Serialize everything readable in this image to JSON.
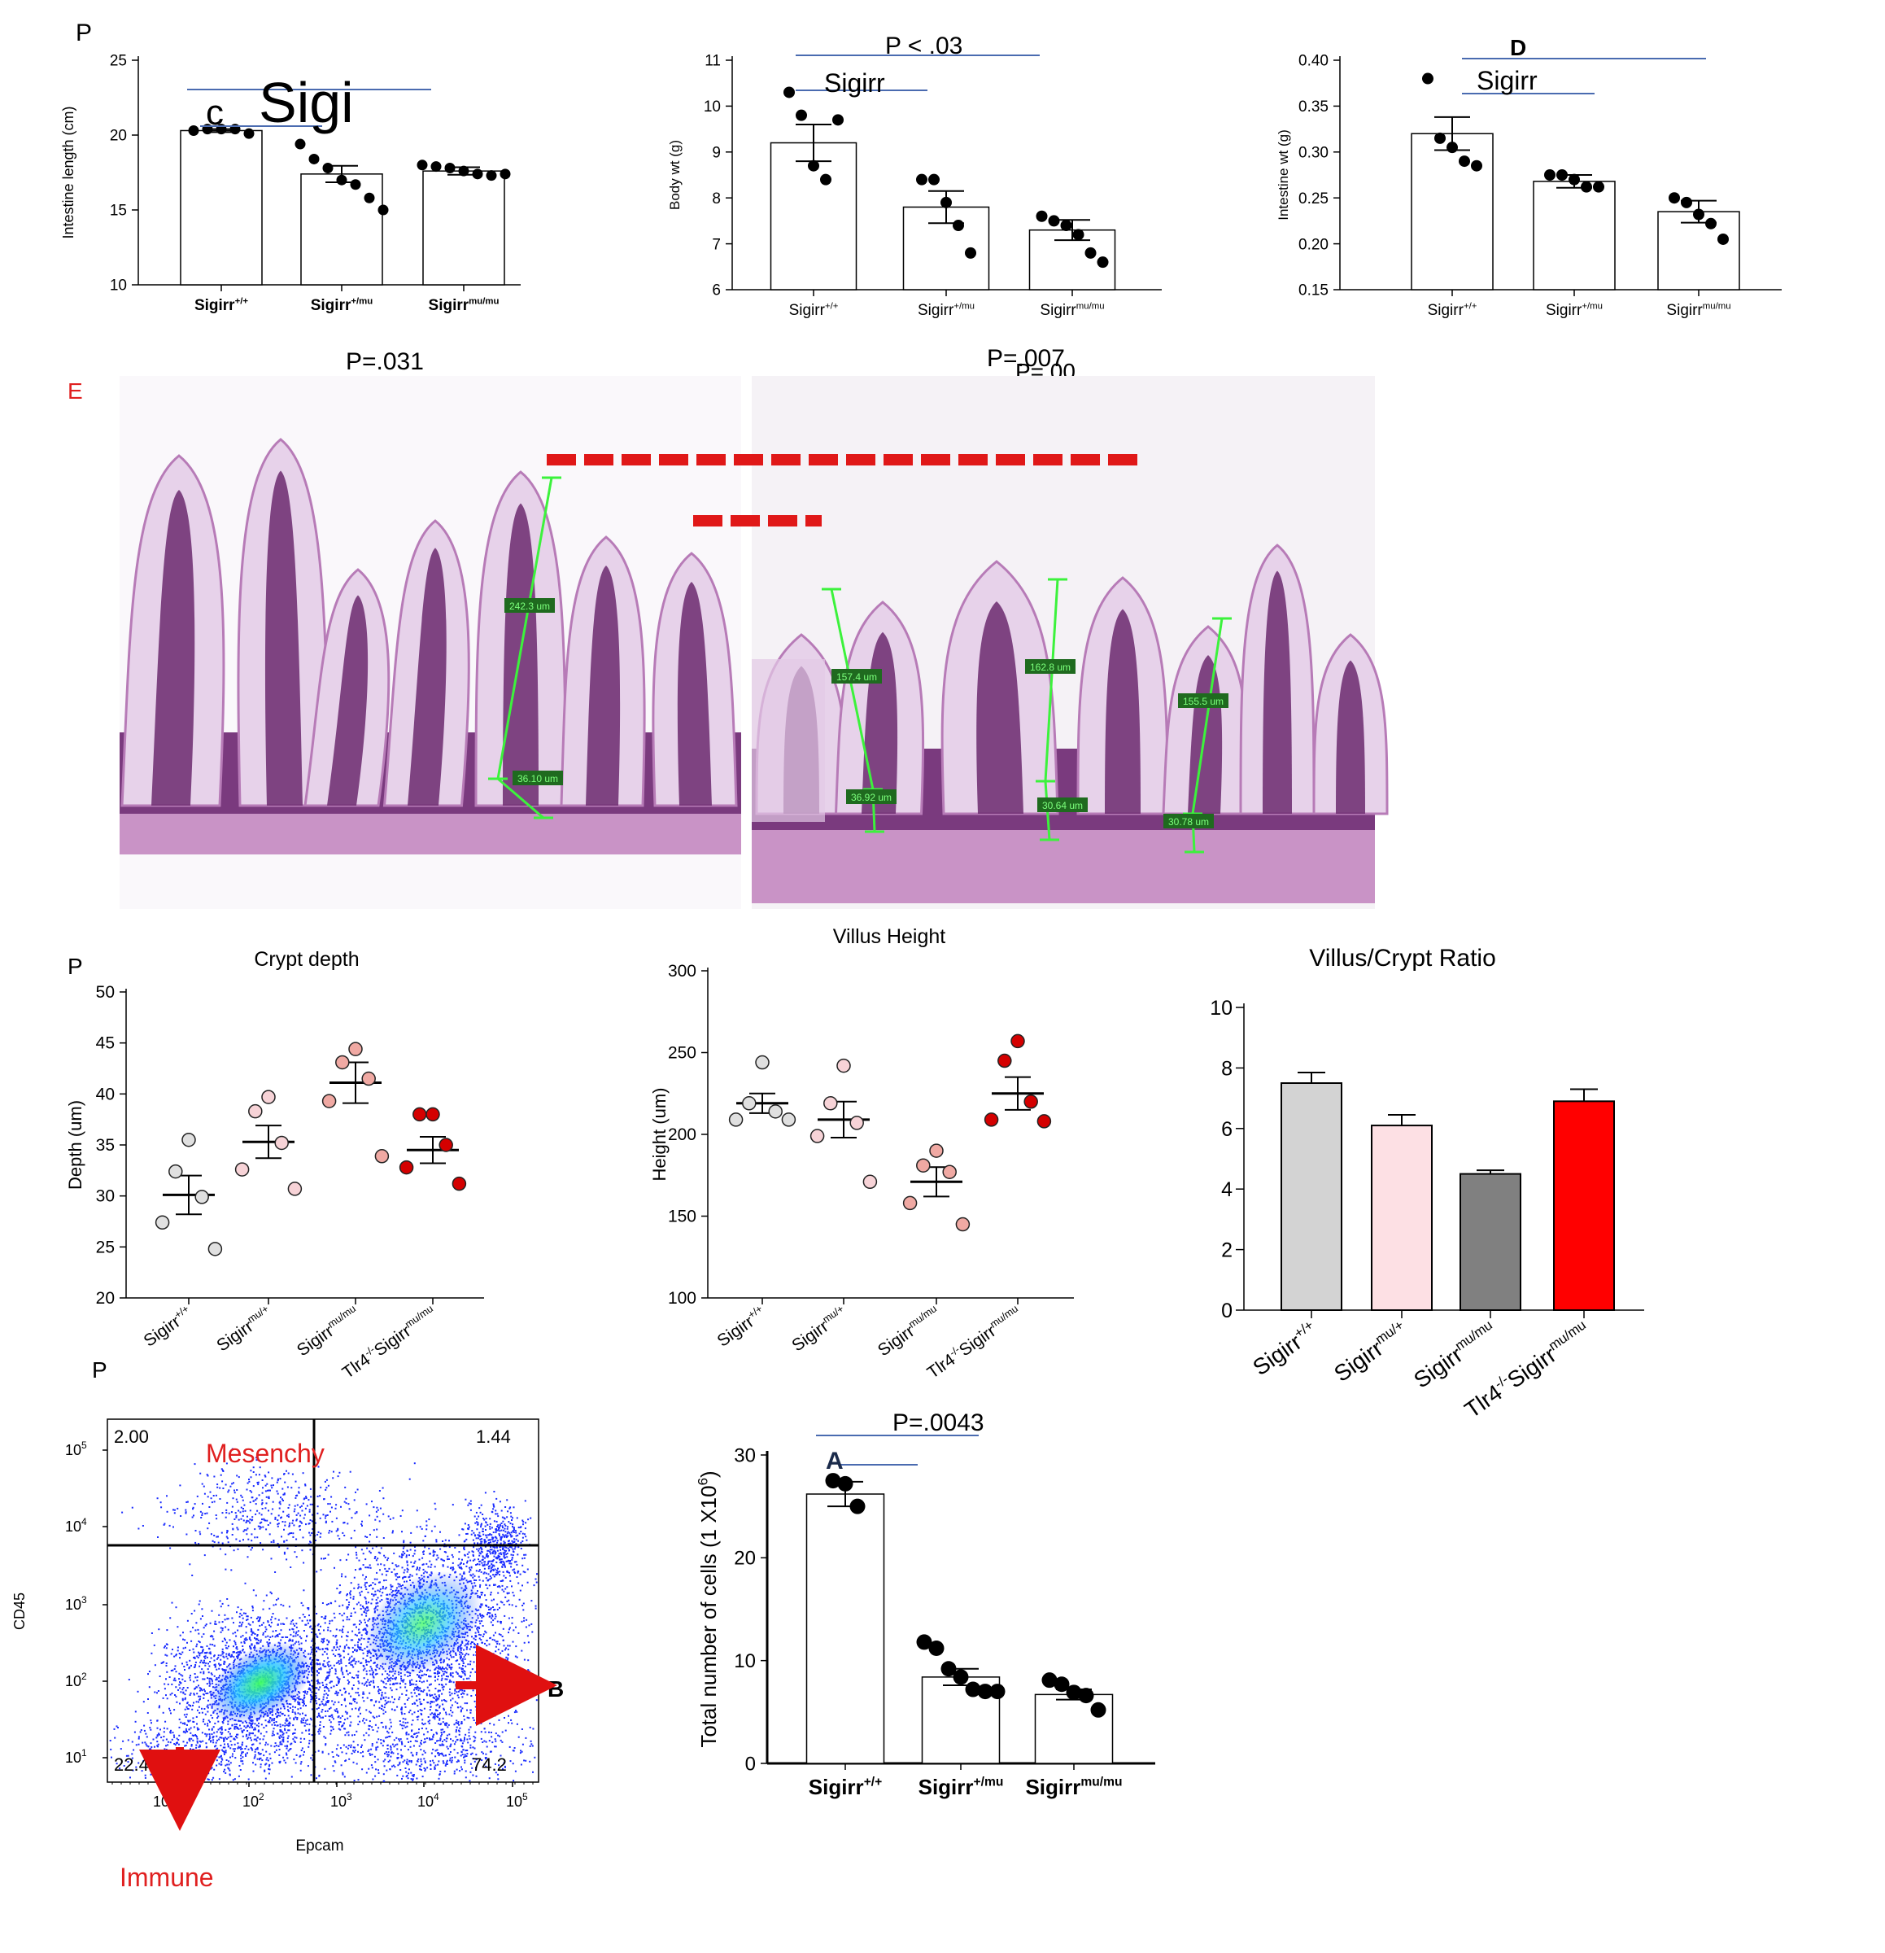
{
  "panels": {
    "a_label": "P",
    "e_label": "E",
    "f_label": "P",
    "g_label": "P",
    "d_label": "D"
  },
  "annotations": {
    "intestine_length_overlay_c": "c",
    "intestine_length_overlay_sigi": "Sigi",
    "body_wt_p": "P < .03",
    "body_wt_sigirr": "Sigirr",
    "intestine_wt_sigirr": "Sigirr",
    "histology_p_left": "P=.031",
    "histology_p_right": "P=.007",
    "histology_p_right_ghost": "P=.00",
    "total_cells_p": "P=.0043",
    "total_cells_a": "A",
    "flow_mesenchy": "Mesenchy",
    "flow_immune": "Immune",
    "flow_b": "B"
  },
  "histology_measurements": [
    "242.3 um",
    "36.10 um",
    "157.4 um",
    "36.92 um",
    "162.8 um",
    "30.64 um",
    "155.5 um",
    "30.78 um"
  ],
  "chart_data": [
    {
      "id": "intestine_length",
      "type": "bar",
      "ylabel": "Intestine length (cm)",
      "ylim": [
        10,
        25
      ],
      "yticks": [
        10,
        15,
        20,
        25
      ],
      "categories": [
        {
          "base": "Sigirr",
          "sup": "+/+"
        },
        {
          "base": "Sigirr",
          "sup": "+/mu"
        },
        {
          "base": "Sigirr",
          "sup": "mu/mu"
        }
      ],
      "values": [
        20.3,
        17.4,
        17.6
      ],
      "sem": [
        0.1,
        0.55,
        0.25
      ],
      "points": [
        [
          20.3,
          20.4,
          20.4,
          20.4,
          20.1
        ],
        [
          19.4,
          18.4,
          17.8,
          17.0,
          16.7,
          15.8,
          15.0
        ],
        [
          18.0,
          17.9,
          17.8,
          17.6,
          17.4,
          17.3,
          17.4
        ]
      ]
    },
    {
      "id": "body_wt",
      "type": "bar",
      "ylabel": "Body wt (g)",
      "ylim": [
        6,
        11
      ],
      "yticks": [
        6,
        7,
        8,
        9,
        10,
        11
      ],
      "categories": [
        {
          "base": "Sigirr",
          "sup": "+/+"
        },
        {
          "base": "Sigirr",
          "sup": "+/mu"
        },
        {
          "base": "Sigirr",
          "sup": "mu/mu"
        }
      ],
      "values": [
        9.2,
        7.8,
        7.3
      ],
      "sem": [
        0.4,
        0.35,
        0.22
      ],
      "points": [
        [
          10.3,
          9.8,
          8.7,
          8.4,
          9.7
        ],
        [
          8.4,
          8.4,
          7.9,
          7.4,
          6.8
        ],
        [
          7.6,
          7.5,
          7.4,
          7.2,
          6.8,
          6.6
        ]
      ]
    },
    {
      "id": "intestine_wt",
      "type": "bar",
      "ylabel": "Intestine wt (g)",
      "ylim": [
        0.15,
        0.4
      ],
      "yticks": [
        "0.15",
        "0.20",
        "0.25",
        "0.30",
        "0.35",
        "0.40"
      ],
      "categories": [
        {
          "base": "Sigirr",
          "sup": "+/+"
        },
        {
          "base": "Sigirr",
          "sup": "+/mu"
        },
        {
          "base": "Sigirr",
          "sup": "mu/mu"
        }
      ],
      "values": [
        0.32,
        0.268,
        0.235
      ],
      "sem": [
        0.018,
        0.007,
        0.012
      ],
      "points": [
        [
          0.38,
          0.315,
          0.305,
          0.29,
          0.285
        ],
        [
          0.275,
          0.275,
          0.27,
          0.262,
          0.262
        ],
        [
          0.25,
          0.245,
          0.232,
          0.222,
          0.205
        ]
      ]
    },
    {
      "id": "crypt_depth",
      "type": "scatter",
      "title": "Crypt depth",
      "ylabel": "Depth (um)",
      "ylim": [
        20,
        50
      ],
      "yticks": [
        20,
        25,
        30,
        35,
        40,
        45,
        50
      ],
      "categories": [
        {
          "base": "Sigirr",
          "sup": "+/+",
          "pre": ""
        },
        {
          "base": "Sigirr",
          "sup": "mu/+",
          "pre": ""
        },
        {
          "base": "Sigirr",
          "sup": "mu/mu",
          "pre": ""
        },
        {
          "base": "Sigirr",
          "sup": "mu/mu",
          "pre": "Tlr4",
          "presup": "-/-"
        }
      ],
      "colors": [
        "#e0e0e0",
        "#f7d3d7",
        "#f0a9a3",
        "#d40000"
      ],
      "means": [
        30.1,
        35.3,
        41.1,
        34.5
      ],
      "sem": [
        1.9,
        1.6,
        2.0,
        1.3
      ],
      "points": [
        [
          35.5,
          32.4,
          29.9,
          27.4,
          24.8
        ],
        [
          39.7,
          38.3,
          35.2,
          32.6,
          30.7
        ],
        [
          44.4,
          43.1,
          41.5,
          39.3,
          33.9
        ],
        [
          38.0,
          38.0,
          35.0,
          32.8,
          31.2
        ]
      ]
    },
    {
      "id": "villus_height",
      "type": "scatter",
      "title": "Villus Height",
      "ylabel": "Height (um)",
      "ylim": [
        100,
        300
      ],
      "yticks": [
        100,
        150,
        200,
        250,
        300
      ],
      "categories": [
        {
          "base": "Sigirr",
          "sup": "+/+",
          "pre": ""
        },
        {
          "base": "Sigirr",
          "sup": "mu/+",
          "pre": ""
        },
        {
          "base": "Sigirr",
          "sup": "mu/mu",
          "pre": ""
        },
        {
          "base": "Sigirr",
          "sup": "mu/mu",
          "pre": "Tlr4",
          "presup": "-/-"
        }
      ],
      "colors": [
        "#e0e0e0",
        "#f7d3d7",
        "#f0a9a3",
        "#d40000"
      ],
      "means": [
        219,
        209,
        171,
        225
      ],
      "sem": [
        6,
        11,
        9,
        10
      ],
      "points": [
        [
          244,
          219,
          214,
          209,
          209
        ],
        [
          242,
          219,
          207,
          199,
          171
        ],
        [
          190,
          181,
          177,
          158,
          145
        ],
        [
          257,
          245,
          220,
          209,
          208
        ]
      ]
    },
    {
      "id": "villus_crypt_ratio",
      "type": "bar",
      "title": "Villus/Crypt Ratio",
      "ylim": [
        0,
        10
      ],
      "yticks": [
        0,
        2,
        4,
        6,
        8,
        10
      ],
      "categories": [
        {
          "base": "Sigirr",
          "sup": "+/+",
          "pre": ""
        },
        {
          "base": "Sigirr",
          "sup": "mu/+",
          "pre": ""
        },
        {
          "base": "Sigirr",
          "sup": "mu/mu",
          "pre": ""
        },
        {
          "base": "Sigirr",
          "sup": "mu/mu",
          "pre": "Tlr4",
          "presup": "-/-"
        }
      ],
      "colors": [
        "#d3d3d3",
        "#fde0e4",
        "#808080",
        "#ff0000"
      ],
      "values": [
        7.5,
        6.1,
        4.5,
        6.9
      ],
      "sem": [
        0.35,
        0.35,
        0.12,
        0.4
      ]
    },
    {
      "id": "flow_cytometry",
      "type": "scatter",
      "xlabel": "Epcam",
      "ylabel": "CD45",
      "xticks": [
        "10",
        "10",
        "10",
        "10",
        "10"
      ],
      "xtick_exp": [
        "",
        "2",
        "3",
        "4",
        "5"
      ],
      "yticks": [
        "10",
        "10",
        "10",
        "10",
        "10"
      ],
      "ytick_exp": [
        "1",
        "2",
        "3",
        "4",
        "5"
      ],
      "quadrants": {
        "top_left": "2.00",
        "top_right": "1.44",
        "bottom_left": "22.4",
        "bottom_right": "74.2"
      }
    },
    {
      "id": "total_cells",
      "type": "bar",
      "ylabel": "Total number of cells (1 X10",
      "ylabel_sup": "6",
      "ylabel_end": ")",
      "ylim": [
        0,
        30
      ],
      "yticks": [
        0,
        10,
        20,
        30
      ],
      "categories": [
        {
          "base": "Sigirr",
          "sup": "+/+"
        },
        {
          "base": "Sigirr",
          "sup": "+/mu"
        },
        {
          "base": "Sigirr",
          "sup": "mu/mu"
        }
      ],
      "values": [
        26.2,
        8.4,
        6.7
      ],
      "sem": [
        1.2,
        0.8,
        0.5
      ],
      "points": [
        [
          27.5,
          27.2,
          25.0
        ],
        [
          11.8,
          11.2,
          9.2,
          8.4,
          7.2,
          7.0,
          7.0
        ],
        [
          8.1,
          7.7,
          6.9,
          6.6,
          5.2
        ]
      ]
    }
  ]
}
